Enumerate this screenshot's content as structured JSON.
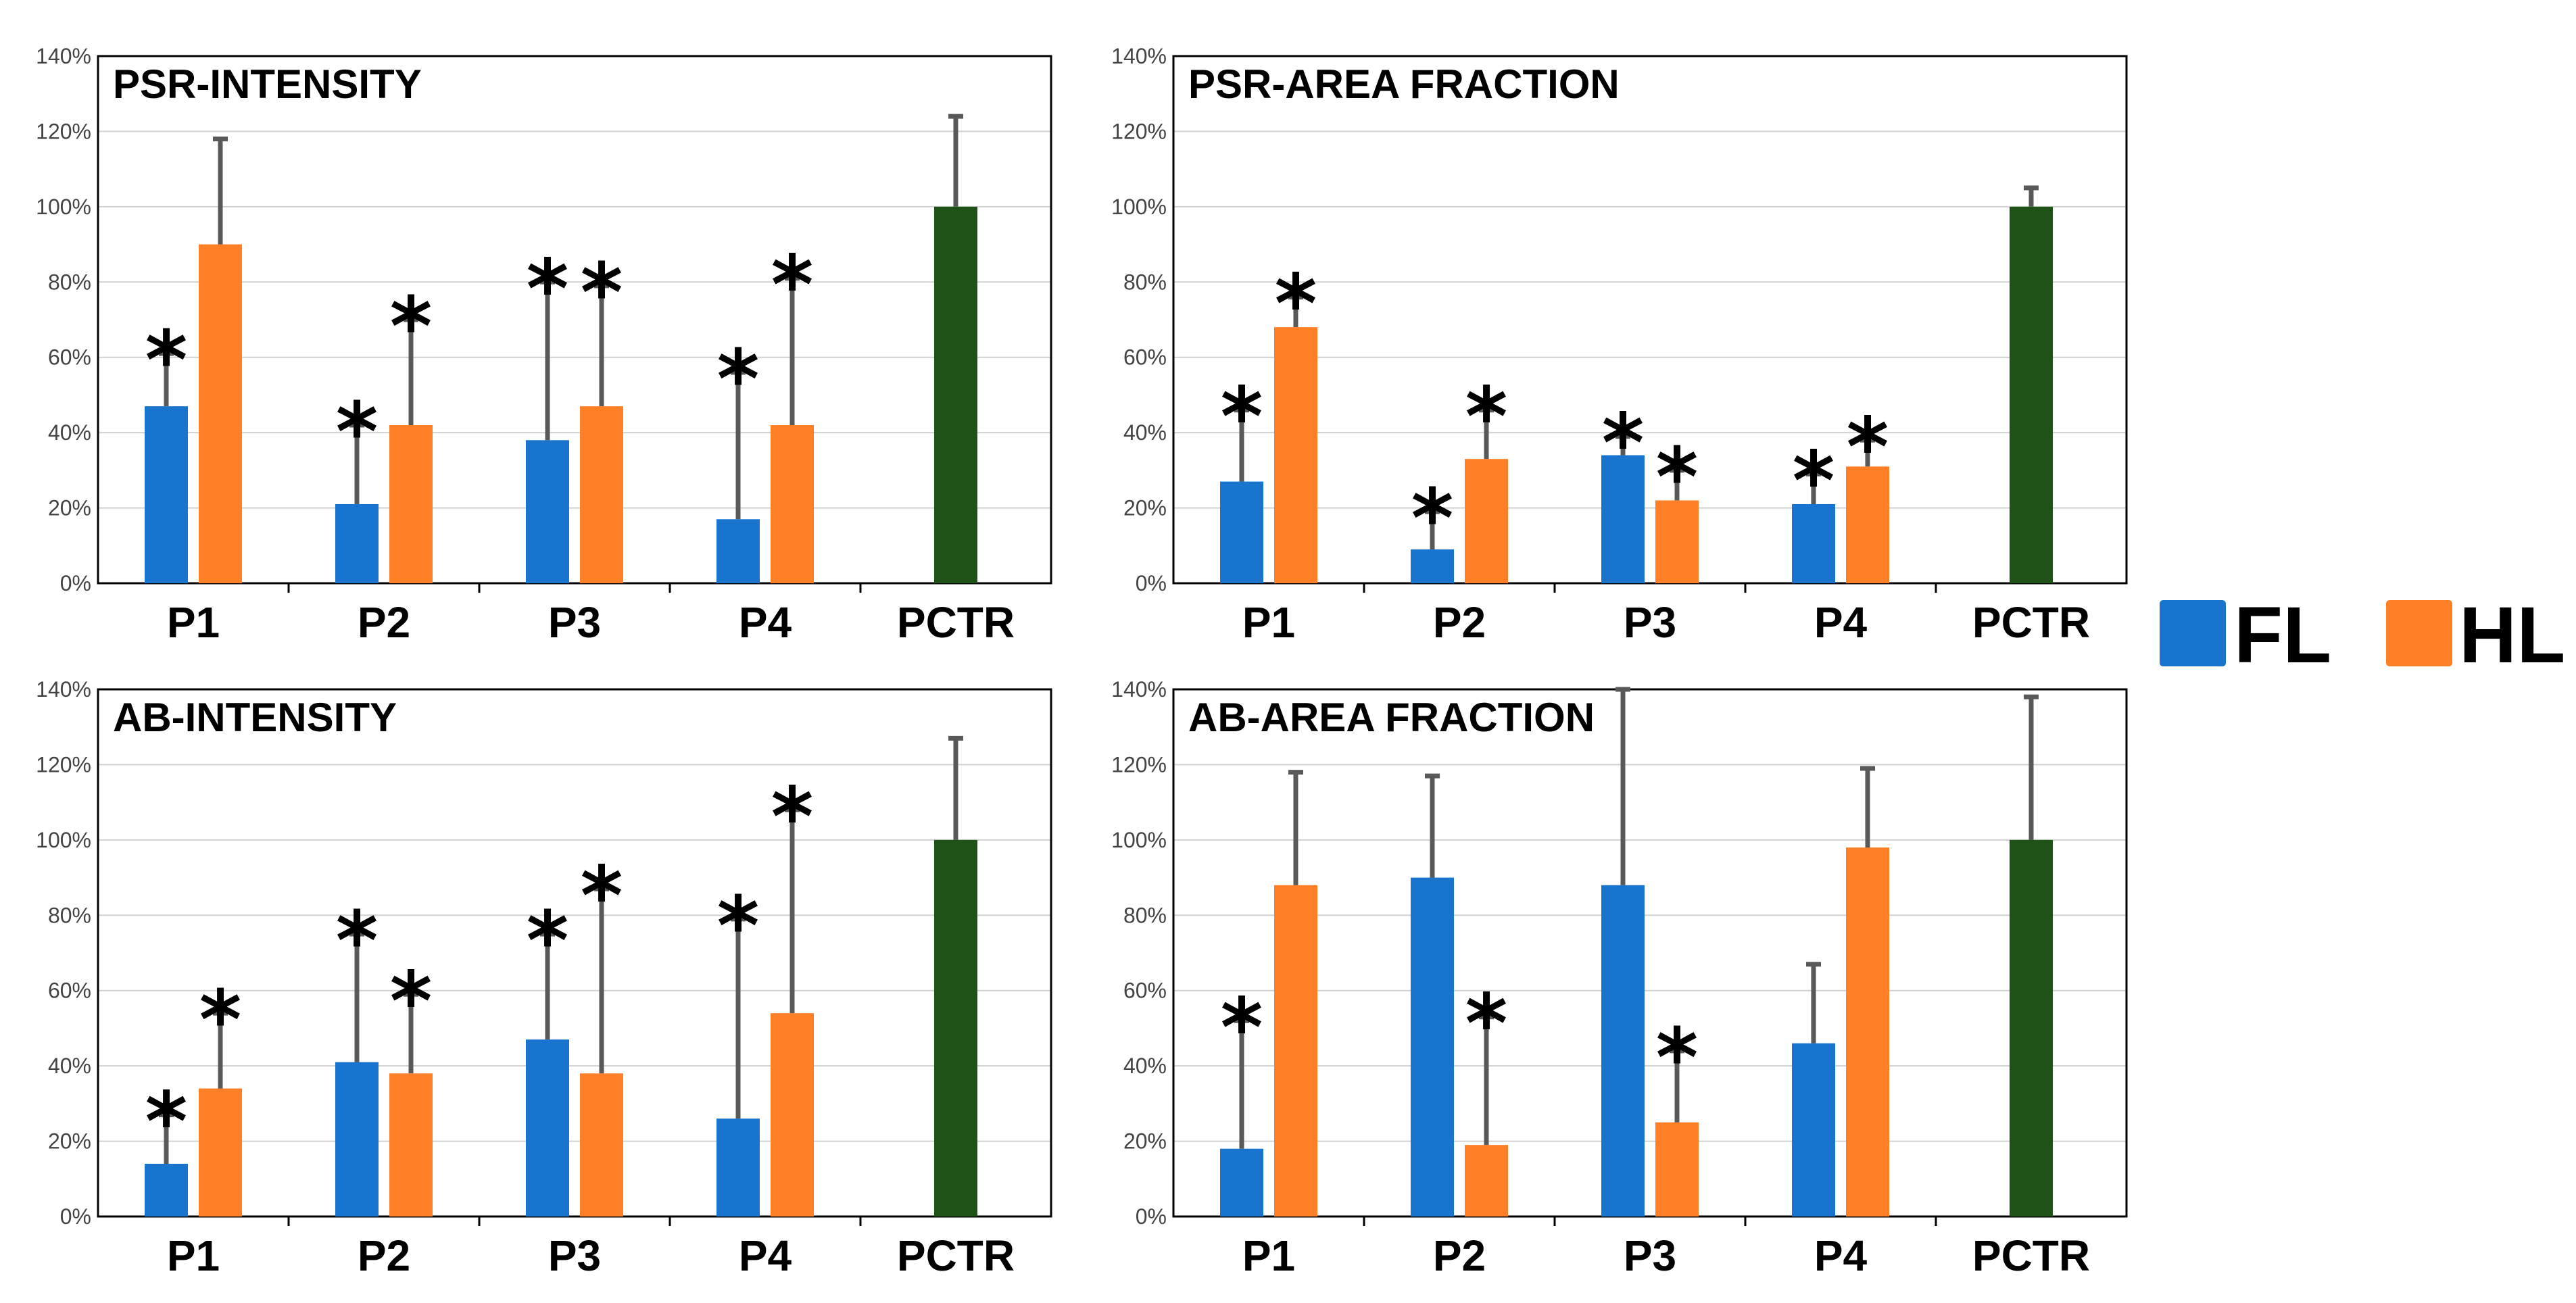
{
  "colors": {
    "FL": "#1874CD",
    "HL": "#FF7F27",
    "PCTR": "#1E5216",
    "error": "#595959",
    "grid": "#D0D0D0"
  },
  "legend": [
    {
      "label": "FL",
      "color": "#1874CD"
    },
    {
      "label": "HL",
      "color": "#FF7F27"
    }
  ],
  "chart_data": [
    {
      "type": "bar",
      "title": "PSR-INTENSITY",
      "categories": [
        "P1",
        "P2",
        "P3",
        "P4",
        "PCTR"
      ],
      "ylim": [
        0,
        140
      ],
      "yticks": [
        "0%",
        "20%",
        "40%",
        "60%",
        "80%",
        "100%",
        "120%",
        "140%"
      ],
      "series": [
        {
          "name": "FL",
          "values": [
            47,
            21,
            38,
            17,
            null
          ],
          "errors": [
            14,
            21,
            42,
            39,
            null
          ],
          "significant": [
            true,
            true,
            true,
            true,
            false
          ]
        },
        {
          "name": "HL",
          "values": [
            90,
            42,
            47,
            42,
            null
          ],
          "errors": [
            28,
            28,
            32,
            39,
            null
          ],
          "significant": [
            false,
            true,
            true,
            true,
            false
          ]
        },
        {
          "name": "PCTR",
          "values": [
            null,
            null,
            null,
            null,
            100
          ],
          "errors": [
            null,
            null,
            null,
            null,
            24
          ],
          "significant": [
            false,
            false,
            false,
            false,
            false
          ]
        }
      ]
    },
    {
      "type": "bar",
      "title": "PSR-AREA FRACTION",
      "categories": [
        "P1",
        "P2",
        "P3",
        "P4",
        "PCTR"
      ],
      "ylim": [
        0,
        140
      ],
      "yticks": [
        "0%",
        "20%",
        "40%",
        "60%",
        "80%",
        "100%",
        "120%",
        "140%"
      ],
      "series": [
        {
          "name": "FL",
          "values": [
            27,
            9,
            34,
            21,
            null
          ],
          "errors": [
            19,
            10,
            5,
            8,
            null
          ],
          "significant": [
            true,
            true,
            true,
            true,
            false
          ]
        },
        {
          "name": "HL",
          "values": [
            68,
            33,
            22,
            31,
            null
          ],
          "errors": [
            8,
            13,
            8,
            7,
            null
          ],
          "significant": [
            true,
            true,
            true,
            true,
            false
          ]
        },
        {
          "name": "PCTR",
          "values": [
            null,
            null,
            null,
            null,
            100
          ],
          "errors": [
            null,
            null,
            null,
            null,
            5
          ],
          "significant": [
            false,
            false,
            false,
            false,
            false
          ]
        }
      ]
    },
    {
      "type": "bar",
      "title": "AB-INTENSITY",
      "categories": [
        "P1",
        "P2",
        "P3",
        "P4",
        "PCTR"
      ],
      "ylim": [
        0,
        140
      ],
      "yticks": [
        "0%",
        "20%",
        "40%",
        "60%",
        "80%",
        "100%",
        "120%",
        "140%"
      ],
      "series": [
        {
          "name": "FL",
          "values": [
            14,
            41,
            47,
            26,
            null
          ],
          "errors": [
            13,
            34,
            28,
            53,
            null
          ],
          "significant": [
            true,
            true,
            true,
            true,
            false
          ]
        },
        {
          "name": "HL",
          "values": [
            34,
            38,
            38,
            54,
            null
          ],
          "errors": [
            20,
            21,
            49,
            54,
            null
          ],
          "significant": [
            true,
            true,
            true,
            true,
            false
          ]
        },
        {
          "name": "PCTR",
          "values": [
            null,
            null,
            null,
            null,
            100
          ],
          "errors": [
            null,
            null,
            null,
            null,
            27
          ],
          "significant": [
            false,
            false,
            false,
            false,
            false
          ]
        }
      ]
    },
    {
      "type": "bar",
      "title": "AB-AREA FRACTION",
      "categories": [
        "P1",
        "P2",
        "P3",
        "P4",
        "PCTR"
      ],
      "ylim": [
        0,
        140
      ],
      "yticks": [
        "0%",
        "20%",
        "40%",
        "60%",
        "80%",
        "100%",
        "120%",
        "140%"
      ],
      "series": [
        {
          "name": "FL",
          "values": [
            18,
            90,
            88,
            46,
            null
          ],
          "errors": [
            34,
            27,
            52,
            21,
            null
          ],
          "significant": [
            true,
            false,
            false,
            false,
            false
          ]
        },
        {
          "name": "HL",
          "values": [
            88,
            19,
            25,
            98,
            null
          ],
          "errors": [
            30,
            34,
            19,
            21,
            null
          ],
          "significant": [
            false,
            true,
            true,
            false,
            false
          ]
        },
        {
          "name": "PCTR",
          "values": [
            null,
            null,
            null,
            null,
            100
          ],
          "errors": [
            null,
            null,
            null,
            null,
            38
          ],
          "significant": [
            false,
            false,
            false,
            false,
            false
          ]
        }
      ]
    }
  ],
  "significance_marker": "*"
}
